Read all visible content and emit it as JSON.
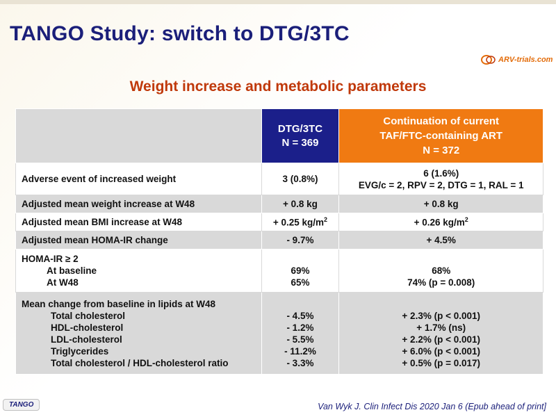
{
  "slide": {
    "title": "TANGO Study: switch to DTG/3TC",
    "subtitle": "Weight increase and metabolic parameters",
    "logo_text": "ARV-trials.com",
    "footer_tag": "TANGO",
    "citation": "Van Wyk J. Clin Infect Dis 2020 Jan 6 (Epub ahead of print]"
  },
  "colors": {
    "title": "#1b1f7a",
    "subtitle": "#c0390b",
    "dtg_header": "#1b1f8a",
    "taf_header": "#f07a12",
    "grey_row": "#d9d9d9"
  },
  "table": {
    "header": {
      "dtg_line1": "DTG/3TC",
      "dtg_line2": "N = 369",
      "taf_line1": "Continuation of current",
      "taf_line2": "TAF/FTC-containing ART",
      "taf_line3": "N = 372"
    },
    "rows": {
      "ae": {
        "label": "Adverse event of increased weight",
        "dtg": "3 (0.8%)",
        "taf_line1": "6 (1.6%)",
        "taf_line2": "EVG/c = 2, RPV = 2, DTG = 1, RAL = 1"
      },
      "weight": {
        "label": "Adjusted mean weight increase at W48",
        "dtg": "+ 0.8 kg",
        "taf": "+ 0.8 kg"
      },
      "bmi": {
        "label": "Adjusted mean BMI increase at W48",
        "dtg": "+ 0.25 kg/m",
        "dtg_sup": "2",
        "taf": "+ 0.26 kg/m",
        "taf_sup": "2"
      },
      "homa_change": {
        "label": "Adjusted mean HOMA-IR change",
        "dtg": "- 9.7%",
        "taf": "+ 4.5%"
      },
      "homa2": {
        "label": "HOMA-IR ≥ 2",
        "sub1": "At baseline",
        "sub2": "At W48",
        "dtg1": "69%",
        "dtg2": "65%",
        "taf1": "68%",
        "taf2": "74% (p = 0.008)"
      },
      "lipids": {
        "label": "Mean change from baseline in lipids at W48",
        "items": [
          {
            "name": "Total cholesterol",
            "dtg": "- 4.5%",
            "taf": "+ 2.3% (p < 0.001)"
          },
          {
            "name": "HDL-cholesterol",
            "dtg": "- 1.2%",
            "taf": "+ 1.7% (ns)"
          },
          {
            "name": "LDL-cholesterol",
            "dtg": "- 5.5%",
            "taf": "+ 2.2% (p < 0.001)"
          },
          {
            "name": "Triglycerides",
            "dtg": "- 11.2%",
            "taf": "+ 6.0% (p < 0.001)"
          },
          {
            "name": "Total cholesterol / HDL-cholesterol ratio",
            "dtg": "- 3.3%",
            "taf": "+ 0.5% (p = 0.017)"
          }
        ]
      }
    }
  }
}
